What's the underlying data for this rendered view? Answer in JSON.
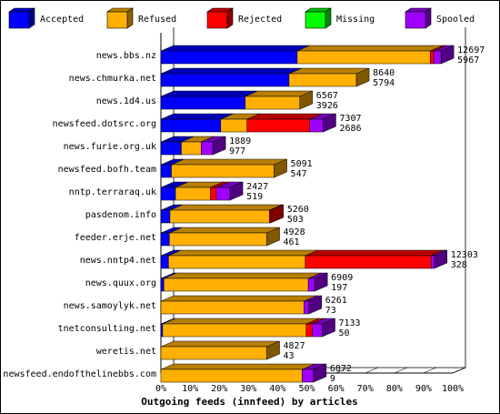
{
  "chart_data": {
    "type": "bar",
    "stacked": true,
    "orientation": "horizontal",
    "normalized_percent": true,
    "title": "",
    "xlabel": "Outgoing feeds (innfeed) by articles",
    "ylabel": "",
    "xlim": [
      0,
      100
    ],
    "x_ticks": [
      "0%",
      "10%",
      "20%",
      "30%",
      "40%",
      "50%",
      "60%",
      "70%",
      "80%",
      "90%",
      "100%"
    ],
    "grid": false,
    "legend_position": "top",
    "categories": [
      "news.bbs.nz",
      "news.chmurka.net",
      "news.1d4.us",
      "newsfeed.dotsrc.org",
      "news.furie.org.uk",
      "newsfeed.bofh.team",
      "nntp.terraraq.uk",
      "pasdenom.info",
      "feeder.erje.net",
      "news.nntp4.net",
      "news.quux.org",
      "news.samoylyk.net",
      "tnetconsulting.net",
      "weretis.net",
      "newsfeed.endofthelinebbs.com"
    ],
    "series": [
      {
        "name": "Accepted",
        "color": "#0000ff",
        "values": [
          46.7,
          43.9,
          28.9,
          20.5,
          7.0,
          3.6,
          5.0,
          3.1,
          2.9,
          2.6,
          1.0,
          0,
          0.6,
          0,
          0
        ]
      },
      {
        "name": "Refused",
        "color": "#ffb000",
        "values": [
          45.6,
          23.1,
          18.7,
          9.0,
          6.8,
          35.2,
          12.0,
          34.1,
          33.4,
          46.9,
          49.5,
          49.0,
          49.2,
          36.3,
          48.4
        ]
      },
      {
        "name": "Rejected",
        "color": "#ff0000",
        "values": [
          1.2,
          0,
          0,
          21.5,
          0,
          0,
          2.0,
          0.4,
          0,
          43.1,
          0,
          0,
          2.0,
          0,
          0
        ]
      },
      {
        "name": "Missing",
        "color": "#00ff00",
        "values": [
          0,
          0,
          0,
          0,
          0,
          0,
          0,
          0,
          0,
          0,
          0,
          0,
          0,
          0,
          0
        ]
      },
      {
        "name": "Spooled",
        "color": "#a000ff",
        "values": [
          2.5,
          0,
          0,
          4.6,
          4.0,
          0,
          4.7,
          0,
          0,
          1.1,
          2.2,
          1.7,
          3.5,
          0,
          3.9
        ]
      }
    ],
    "annotations": [
      [
        "12697",
        "5967"
      ],
      [
        "8640",
        "5794"
      ],
      [
        "6567",
        "3926"
      ],
      [
        "7307",
        "2686"
      ],
      [
        "1889",
        "977"
      ],
      [
        "5091",
        "547"
      ],
      [
        "2427",
        "519"
      ],
      [
        "5260",
        "503"
      ],
      [
        "4928",
        "461"
      ],
      [
        "12303",
        "328"
      ],
      [
        "6909",
        "197"
      ],
      [
        "6261",
        "73"
      ],
      [
        "7133",
        "50"
      ],
      [
        "4827",
        "43"
      ],
      [
        "6872",
        "9"
      ]
    ]
  }
}
